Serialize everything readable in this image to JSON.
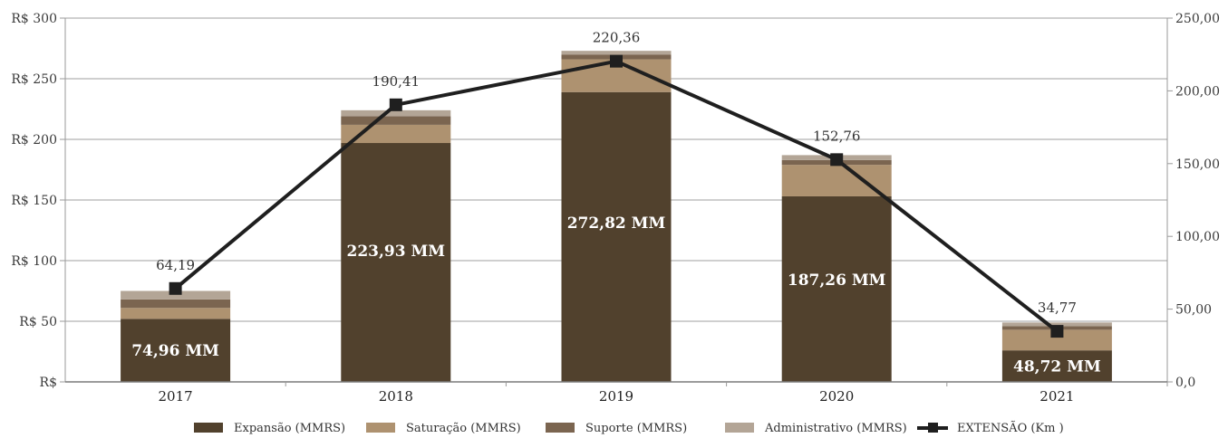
{
  "chart_data": {
    "type": "bar",
    "stacked": true,
    "categories": [
      "2017",
      "2018",
      "2019",
      "2020",
      "2021"
    ],
    "series": [
      {
        "name": "Expansão (MMRS)",
        "color": "#51412d",
        "values": [
          52,
          197,
          239,
          153,
          26
        ]
      },
      {
        "name": "Saturação (MMRS)",
        "color": "#ae9270",
        "values": [
          9,
          15,
          27,
          26,
          17
        ]
      },
      {
        "name": "Suporte (MMRS)",
        "color": "#7b6550",
        "values": [
          7,
          7,
          4,
          4,
          3
        ]
      },
      {
        "name": "Administrativo (MMRS)",
        "color": "#b3a596",
        "values": [
          7,
          5,
          3,
          4,
          3
        ]
      }
    ],
    "bar_labels": [
      "74,96 MM",
      "223,93 MM",
      "272,82 MM",
      "187,26 MM",
      "48,72 MM"
    ],
    "line": {
      "name": "EXTENSÃO (Km )",
      "color": "#1f1f1f",
      "axis": "right",
      "values": [
        64.19,
        190.41,
        220.36,
        152.76,
        34.77
      ],
      "labels": [
        "64,19",
        "190,41",
        "220,36",
        "152,76",
        "34,77"
      ]
    },
    "left_axis": {
      "ylim": [
        0,
        300
      ],
      "ticks": [
        0,
        50,
        100,
        150,
        200,
        250,
        300
      ],
      "tick_labels": [
        "R$",
        "R$ 50",
        "R$ 100",
        "R$ 150",
        "R$ 200",
        "R$ 250",
        "R$ 300"
      ]
    },
    "right_axis": {
      "ylim": [
        0,
        250
      ],
      "ticks": [
        0,
        50,
        100,
        150,
        200,
        250
      ],
      "tick_labels": [
        "0,0",
        "50,00",
        "100,00",
        "150,00",
        "200,00",
        "250,00"
      ]
    },
    "grid": true,
    "legend_position": "bottom"
  }
}
